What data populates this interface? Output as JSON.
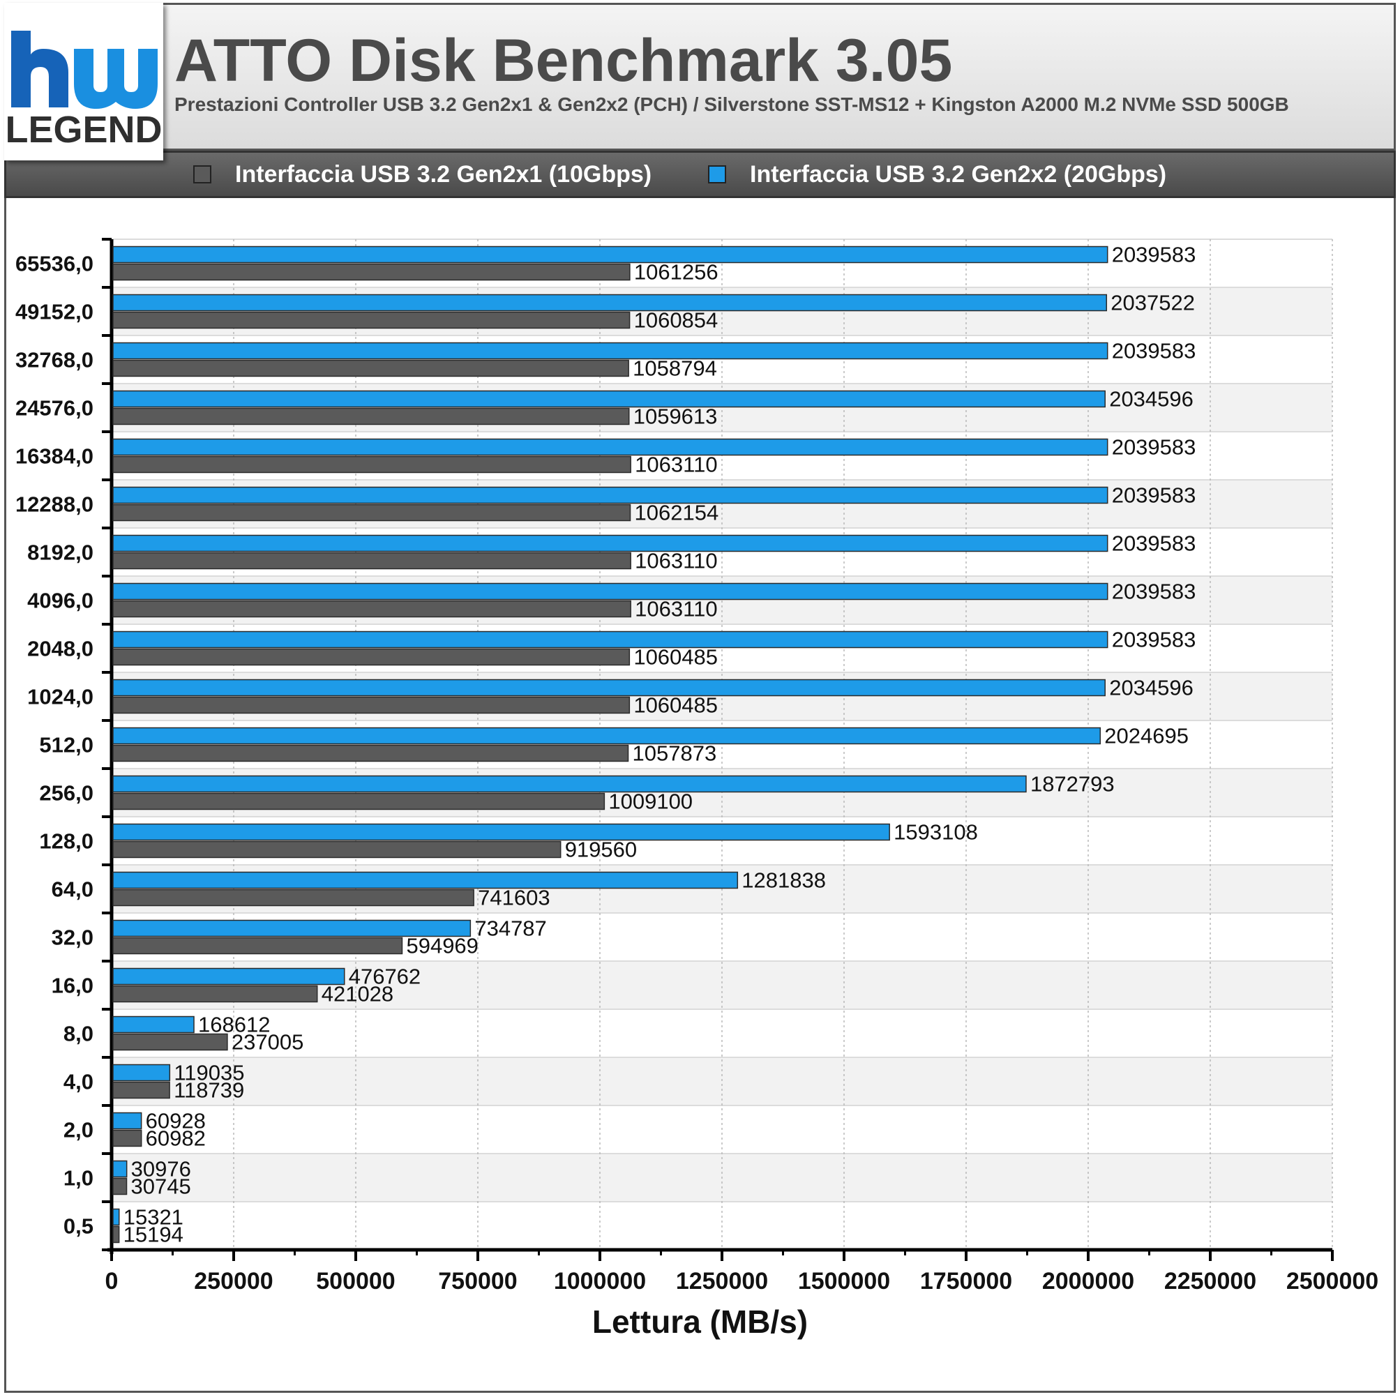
{
  "header": {
    "title": "ATTO Disk Benchmark 3.05",
    "subtitle": "Prestazioni Controller USB 3.2 Gen2x1 & Gen2x2 (PCH) / Silverstone SST-MS12 + Kingston A2000 M.2 NVMe SSD 500GB",
    "logo_text": "LEGEND"
  },
  "colors": {
    "gen2x1": "#5a5a5a",
    "gen2x2": "#1e9be8",
    "band_alt": "#f2f2f2"
  },
  "chart_data": {
    "type": "bar",
    "orientation": "horizontal",
    "categories": [
      "65536,0",
      "49152,0",
      "32768,0",
      "24576,0",
      "16384,0",
      "12288,0",
      "8192,0",
      "4096,0",
      "2048,0",
      "1024,0",
      "512,0",
      "256,0",
      "128,0",
      "64,0",
      "32,0",
      "16,0",
      "8,0",
      "4,0",
      "2,0",
      "1,0",
      "0,5"
    ],
    "series": [
      {
        "name": "Interfaccia USB 3.2 Gen2x2 (20Gbps)",
        "color": "#1e9be8",
        "values": [
          2039583,
          2037522,
          2039583,
          2034596,
          2039583,
          2039583,
          2039583,
          2039583,
          2039583,
          2034596,
          2024695,
          1872793,
          1593108,
          1281838,
          734787,
          476762,
          168612,
          119035,
          60928,
          30976,
          15321
        ]
      },
      {
        "name": "Interfaccia USB 3.2 Gen2x1 (10Gbps)",
        "color": "#5a5a5a",
        "values": [
          1061256,
          1060854,
          1058794,
          1059613,
          1063110,
          1062154,
          1063110,
          1063110,
          1060485,
          1060485,
          1057873,
          1009100,
          919560,
          741603,
          594969,
          421028,
          237005,
          118739,
          60982,
          30745,
          15194
        ]
      }
    ],
    "xlabel": "Lettura (MB/s)",
    "ylabel": "",
    "xlim": [
      0,
      2500000
    ],
    "xticks": [
      0,
      250000,
      500000,
      750000,
      1000000,
      1250000,
      1500000,
      1750000,
      2000000,
      2250000,
      2500000
    ],
    "grid": true,
    "legend_position": "top"
  }
}
